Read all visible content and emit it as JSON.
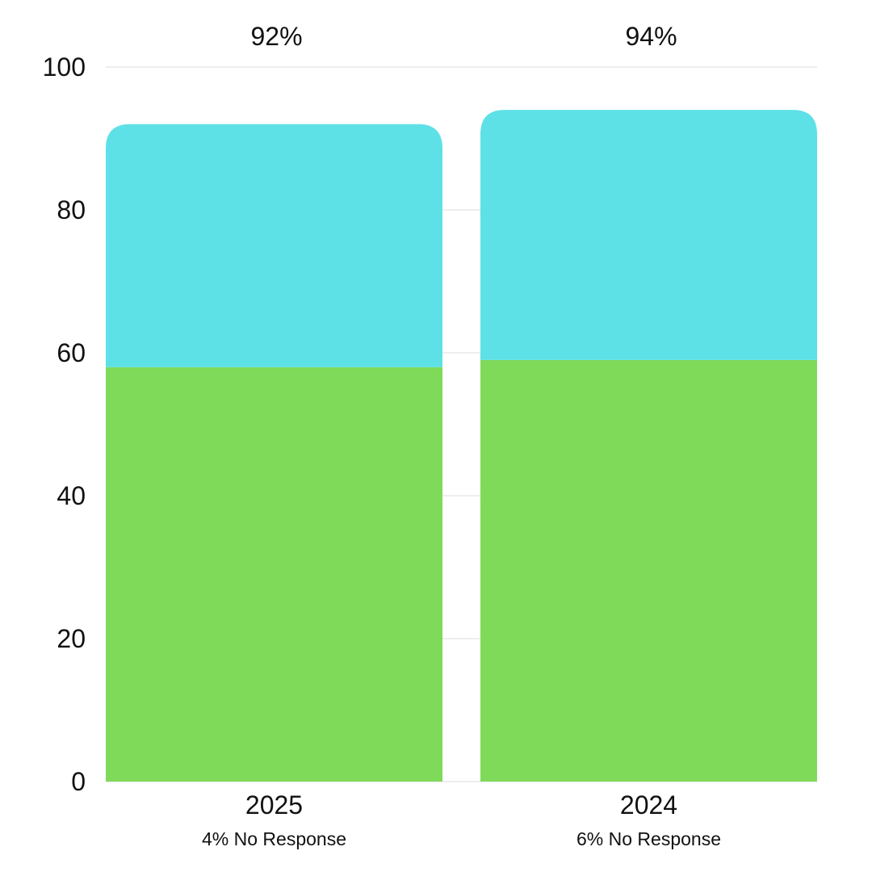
{
  "chart_data": {
    "type": "bar",
    "stacked": true,
    "categories": [
      "2025",
      "2024"
    ],
    "category_sublabels": [
      "4% No Response",
      "6% No Response"
    ],
    "totals": [
      "92%",
      "94%"
    ],
    "series": [
      {
        "values": [
          58,
          59
        ],
        "color": "#80da5a"
      },
      {
        "values": [
          34,
          35
        ],
        "color": "#5de1e6"
      }
    ],
    "ylim": [
      0,
      100
    ],
    "yticks": [
      0,
      20,
      40,
      60,
      80,
      100
    ],
    "grid": true,
    "legend": "none"
  }
}
